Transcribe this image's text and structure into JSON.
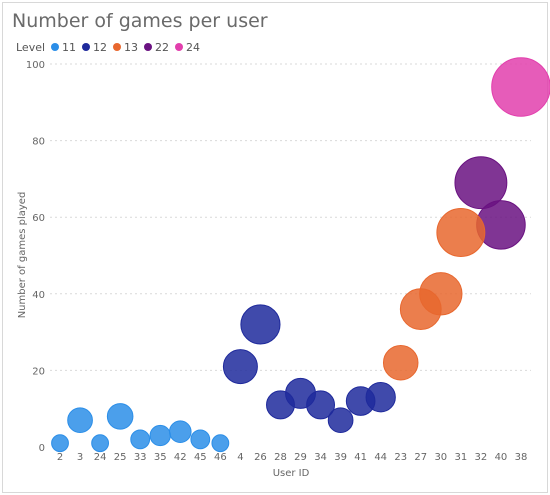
{
  "chart_data": {
    "type": "scatter",
    "title": "Number of games per user",
    "xlabel": "User ID",
    "ylabel": "Number of games played",
    "ylim": [
      0,
      100
    ],
    "yticks": [
      0,
      20,
      40,
      60,
      80,
      100
    ],
    "grid": true,
    "legend_placement": "top-left",
    "legend_title": "Level",
    "categories": [
      "2",
      "3",
      "24",
      "25",
      "33",
      "35",
      "42",
      "45",
      "46",
      "4",
      "26",
      "28",
      "29",
      "34",
      "39",
      "41",
      "44",
      "23",
      "27",
      "30",
      "31",
      "32",
      "40",
      "38"
    ],
    "series": [
      {
        "name": "11",
        "color": "#2b8ee8",
        "points": [
          {
            "x": "2",
            "y": 1
          },
          {
            "x": "3",
            "y": 7
          },
          {
            "x": "24",
            "y": 1
          },
          {
            "x": "25",
            "y": 8
          },
          {
            "x": "33",
            "y": 2
          },
          {
            "x": "35",
            "y": 3
          },
          {
            "x": "42",
            "y": 4
          },
          {
            "x": "45",
            "y": 2
          },
          {
            "x": "46",
            "y": 1
          }
        ]
      },
      {
        "name": "12",
        "color": "#1f2a9c",
        "points": [
          {
            "x": "4",
            "y": 21
          },
          {
            "x": "26",
            "y": 32
          },
          {
            "x": "28",
            "y": 11
          },
          {
            "x": "29",
            "y": 14
          },
          {
            "x": "34",
            "y": 11
          },
          {
            "x": "39",
            "y": 7
          },
          {
            "x": "41",
            "y": 12
          },
          {
            "x": "44",
            "y": 13
          }
        ]
      },
      {
        "name": "13",
        "color": "#e8672e",
        "points": [
          {
            "x": "23",
            "y": 22
          },
          {
            "x": "27",
            "y": 36
          },
          {
            "x": "30",
            "y": 40
          },
          {
            "x": "31",
            "y": 56
          }
        ]
      },
      {
        "name": "22",
        "color": "#6a1281",
        "points": [
          {
            "x": "32",
            "y": 69
          },
          {
            "x": "40",
            "y": 58
          }
        ]
      },
      {
        "name": "24",
        "color": "#e23fad",
        "points": [
          {
            "x": "38",
            "y": 94
          }
        ]
      }
    ]
  }
}
